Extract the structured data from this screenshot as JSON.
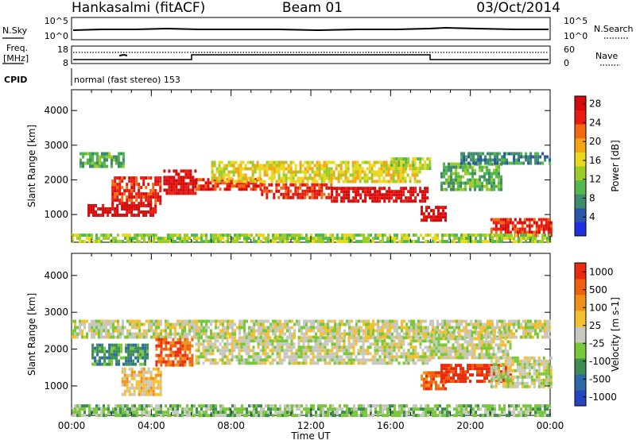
{
  "header": {
    "station": "Hankasalmi (fitACF)",
    "beam": "Beam 01",
    "date": "03/Oct/2014"
  },
  "strip": {
    "nsky_label": "N.Sky",
    "nsky_ticks": [
      "10^5",
      "10^0"
    ],
    "nsearch_label": "N.Search",
    "nsearch_ticks": [
      "10^5",
      "10^0"
    ],
    "freq_label": "Freq.",
    "freq_unit": "[MHz]",
    "freq_ticks": [
      "18",
      "8"
    ],
    "nave_label": "Nave",
    "nave_ticks": [
      "60",
      "0"
    ],
    "cpid_label": "CPID",
    "cpid_value": "normal (fast stereo) 153"
  },
  "chart_data": [
    {
      "type": "heatmap",
      "name": "power",
      "ylabel": "Slant Range [km]",
      "yticks": [
        "1000",
        "2000",
        "3000",
        "4000"
      ],
      "ylim": [
        200,
        4600
      ],
      "colorbar_label": "Power [dB]",
      "colorbar_ticks": [
        "4",
        "8",
        "12",
        "16",
        "20",
        "24",
        "28"
      ],
      "colorbar_colors": [
        "#1f2fe0",
        "#2a55a8",
        "#3d8a6e",
        "#52b84e",
        "#9ccc2a",
        "#e8d820",
        "#f5a418",
        "#f06a10",
        "#e81c10",
        "#d60a0a"
      ],
      "bands": [
        {
          "t0": 0.4,
          "t1": 2.6,
          "r0": 2350,
          "r1": 2800,
          "level": 3
        },
        {
          "t0": 0.8,
          "t1": 4.2,
          "r0": 1000,
          "r1": 1300,
          "level": 9
        },
        {
          "t0": 2.0,
          "t1": 4.5,
          "r0": 1300,
          "r1": 2100,
          "level": 8
        },
        {
          "t0": 4.6,
          "t1": 6.2,
          "r0": 1650,
          "r1": 2300,
          "level": 9
        },
        {
          "t0": 6.2,
          "t1": 9.5,
          "r0": 1700,
          "r1": 2050,
          "level": 8
        },
        {
          "t0": 9.5,
          "t1": 13.0,
          "r0": 1500,
          "r1": 1900,
          "level": 8
        },
        {
          "t0": 13.0,
          "t1": 17.8,
          "r0": 1350,
          "r1": 1800,
          "level": 9
        },
        {
          "t0": 7.0,
          "t1": 17.5,
          "r0": 1950,
          "r1": 2550,
          "level": 5
        },
        {
          "t0": 16.0,
          "t1": 18.0,
          "r0": 2350,
          "r1": 2650,
          "level": 4
        },
        {
          "t0": 17.5,
          "t1": 18.8,
          "r0": 850,
          "r1": 1250,
          "level": 9
        },
        {
          "t0": 18.5,
          "t1": 21.5,
          "r0": 1700,
          "r1": 2500,
          "level": 3
        },
        {
          "t0": 19.5,
          "t1": 24.0,
          "r0": 2450,
          "r1": 2800,
          "level": 2
        },
        {
          "t0": 21.0,
          "t1": 24.0,
          "r0": 400,
          "r1": 900,
          "level": 8
        },
        {
          "t0": 0.0,
          "t1": 24.0,
          "r0": 200,
          "r1": 450,
          "level": 4
        }
      ]
    },
    {
      "type": "heatmap",
      "name": "velocity",
      "xlabel": "Time UT",
      "xticks": [
        "00:00",
        "04:00",
        "08:00",
        "12:00",
        "16:00",
        "20:00",
        "00:00"
      ],
      "xlim": [
        0,
        24
      ],
      "ylabel": "Slant Range [km]",
      "yticks": [
        "1000",
        "2000",
        "3000",
        "4000"
      ],
      "ylim": [
        200,
        4600
      ],
      "colorbar_label": "Velocity [m s-1]",
      "colorbar_ticks": [
        "1000",
        "500",
        "100",
        "25",
        "-25",
        "-100",
        "-500",
        "-1000"
      ],
      "colorbar_colors": [
        "#2845c0",
        "#2f6aa8",
        "#3d8e52",
        "#78c83a",
        "#c8c8c0",
        "#f5c030",
        "#f09018",
        "#f06010",
        "#e82c10"
      ],
      "bands": [
        {
          "t0": 0.0,
          "t1": 24.0,
          "r0": 2350,
          "r1": 2800,
          "level": 4
        },
        {
          "t0": 6.2,
          "t1": 18.0,
          "r0": 1600,
          "r1": 2350,
          "level": 4
        },
        {
          "t0": 18.0,
          "t1": 22.0,
          "r0": 1800,
          "r1": 2500,
          "level": 4
        },
        {
          "t0": 1.0,
          "t1": 3.8,
          "r0": 1550,
          "r1": 2150,
          "level": 2
        },
        {
          "t0": 2.5,
          "t1": 4.5,
          "r0": 800,
          "r1": 1500,
          "level": 5
        },
        {
          "t0": 4.2,
          "t1": 6.0,
          "r0": 1600,
          "r1": 2300,
          "level": 7
        },
        {
          "t0": 17.5,
          "t1": 18.8,
          "r0": 900,
          "r1": 1400,
          "level": 7
        },
        {
          "t0": 18.5,
          "t1": 22.0,
          "r0": 1100,
          "r1": 1600,
          "level": 8
        },
        {
          "t0": 21.0,
          "t1": 24.0,
          "r0": 1000,
          "r1": 1800,
          "level": 4
        },
        {
          "t0": 0.0,
          "t1": 24.0,
          "r0": 200,
          "r1": 500,
          "level": 3
        }
      ]
    }
  ]
}
